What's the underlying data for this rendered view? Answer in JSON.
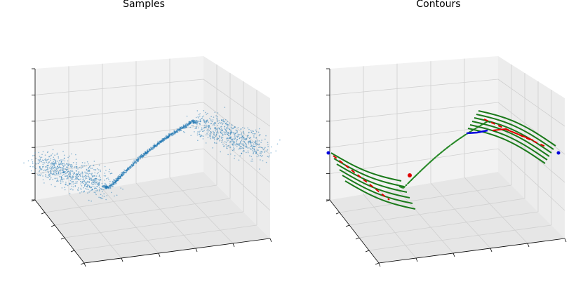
{
  "charts": [
    {
      "type": "scatter3d",
      "title": "Samples"
    },
    {
      "type": "contour3d",
      "title": "Contours"
    }
  ]
}
